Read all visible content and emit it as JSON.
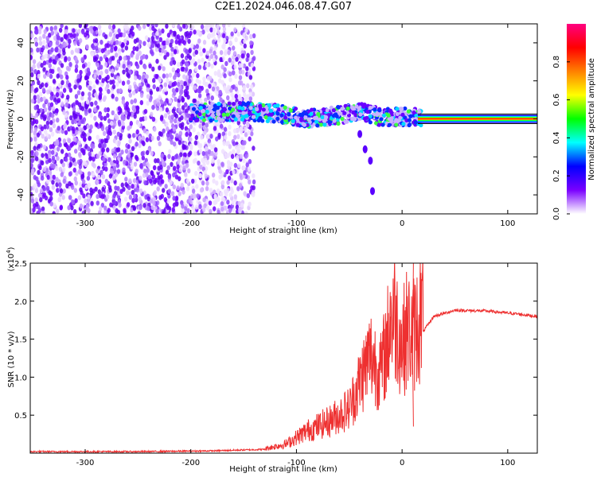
{
  "title": "C2E1.2024.046.08.47.G07",
  "chart_data": [
    {
      "type": "heatmap",
      "xlabel": "Height of straight line (km)",
      "ylabel": "Frequency (Hz)",
      "xlim": [
        -352,
        128
      ],
      "ylim": [
        -50,
        50
      ],
      "xticks": [
        -300,
        -200,
        -100,
        0,
        100
      ],
      "yticks": [
        -40,
        -20,
        0,
        20,
        40
      ],
      "colorbar": {
        "label": "Normalized spectral amplitude",
        "range": [
          0,
          1
        ],
        "ticks": [
          "0.0",
          "0.2",
          "0.4",
          "0.6",
          "0.8"
        ],
        "colors": [
          "#ffffff",
          "#7a00ff",
          "#0000ff",
          "#00ffff",
          "#00ff00",
          "#ffff00",
          "#ff8000",
          "#ff0000",
          "#ff0080"
        ]
      },
      "ridge": [
        {
          "x": -200,
          "y": 3
        },
        {
          "x": -150,
          "y": 4
        },
        {
          "x": -120,
          "y": 3
        },
        {
          "x": -90,
          "y": 0
        },
        {
          "x": -60,
          "y": 2
        },
        {
          "x": -40,
          "y": 4
        },
        {
          "x": -20,
          "y": 1
        },
        {
          "x": 0,
          "y": 1
        },
        {
          "x": 128,
          "y": 0
        }
      ],
      "branch": [
        {
          "x": -40,
          "y": -8
        },
        {
          "x": -35,
          "y": -16
        },
        {
          "x": -30,
          "y": -22
        },
        {
          "x": -28,
          "y": -38
        }
      ]
    },
    {
      "type": "line",
      "xlabel": "Height of straight line (km)",
      "ylabel": "SNR (10 * v/v)",
      "scale_note": "(x10",
      "scale_exp": "4",
      "xlim": [
        -352,
        128
      ],
      "ylim": [
        0,
        2.5
      ],
      "xticks": [
        -300,
        -200,
        -100,
        0,
        100
      ],
      "yticks": [
        "0.5",
        "1.0",
        "1.5",
        "2.0",
        "2.5"
      ],
      "color": "#ee3030",
      "series": [
        {
          "x": -352,
          "y": 0.02
        },
        {
          "x": -250,
          "y": 0.02
        },
        {
          "x": -180,
          "y": 0.03
        },
        {
          "x": -130,
          "y": 0.05
        },
        {
          "x": -110,
          "y": 0.1
        },
        {
          "x": -90,
          "y": 0.25
        },
        {
          "x": -70,
          "y": 0.35
        },
        {
          "x": -50,
          "y": 0.5
        },
        {
          "x": -40,
          "y": 0.8
        },
        {
          "x": -30,
          "y": 1.1
        },
        {
          "x": -20,
          "y": 0.9
        },
        {
          "x": -8,
          "y": 1.6
        },
        {
          "x": 0,
          "y": 1.2
        },
        {
          "x": 5,
          "y": 1.4
        },
        {
          "x": 10,
          "y": 1.3
        },
        {
          "x": 20,
          "y": 1.6
        },
        {
          "x": 30,
          "y": 1.8
        },
        {
          "x": 50,
          "y": 1.88
        },
        {
          "x": 80,
          "y": 1.87
        },
        {
          "x": 110,
          "y": 1.83
        },
        {
          "x": 128,
          "y": 1.8
        }
      ],
      "spikes": [
        {
          "x": -12,
          "y": 2.12
        },
        {
          "x": -30,
          "y": 1.55
        },
        {
          "x": 10,
          "y": 2.55
        },
        {
          "x": 10,
          "y": 0.35
        }
      ]
    }
  ]
}
